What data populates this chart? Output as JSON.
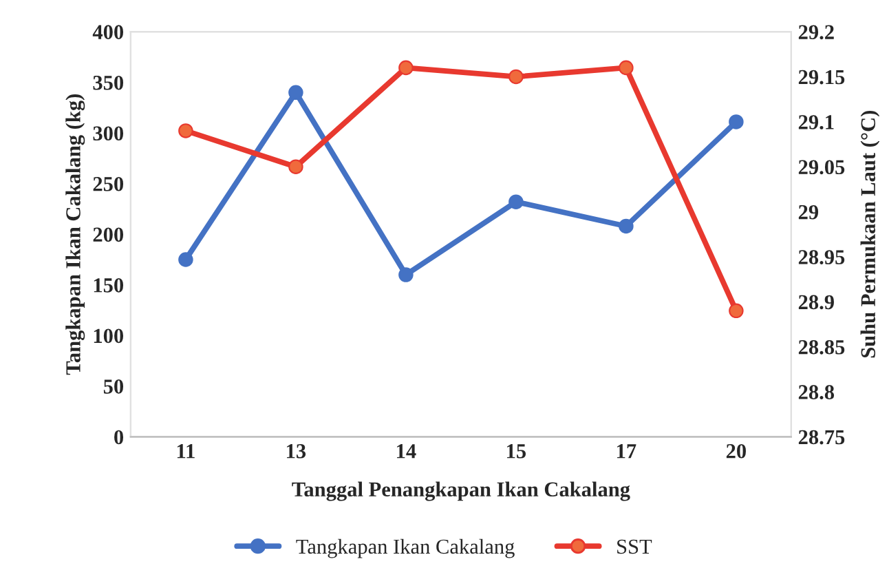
{
  "chart_data": {
    "type": "line",
    "xlabel": "Tanggal Penangkapan Ikan Cakalang",
    "ylabel": "Tangkapan Ikan Cakalang (kg)",
    "y2label": "Suhu Permukaan Laut (°C)",
    "categories": [
      "11",
      "13",
      "14",
      "15",
      "17",
      "20"
    ],
    "series": [
      {
        "name": "Tangkapan Ikan Cakalang",
        "color": "#4472c4",
        "values": [
          175,
          340,
          160,
          232,
          208,
          311
        ]
      },
      {
        "name": "SST",
        "color": "#e8392f",
        "axis": "y2",
        "values": [
          29.09,
          29.05,
          29.16,
          29.15,
          29.16,
          28.89
        ]
      }
    ],
    "ylim": [
      0,
      400
    ],
    "yticks": [
      0,
      50,
      100,
      150,
      200,
      250,
      300,
      350,
      400
    ],
    "y2lim": [
      28.75,
      29.2
    ],
    "y2ticks": [
      28.75,
      28.8,
      28.85,
      28.9,
      28.95,
      29,
      29.05,
      29.1,
      29.15,
      29.2
    ],
    "marker": "circle",
    "line_style": "solid",
    "legend": "bottom",
    "grid": false
  }
}
